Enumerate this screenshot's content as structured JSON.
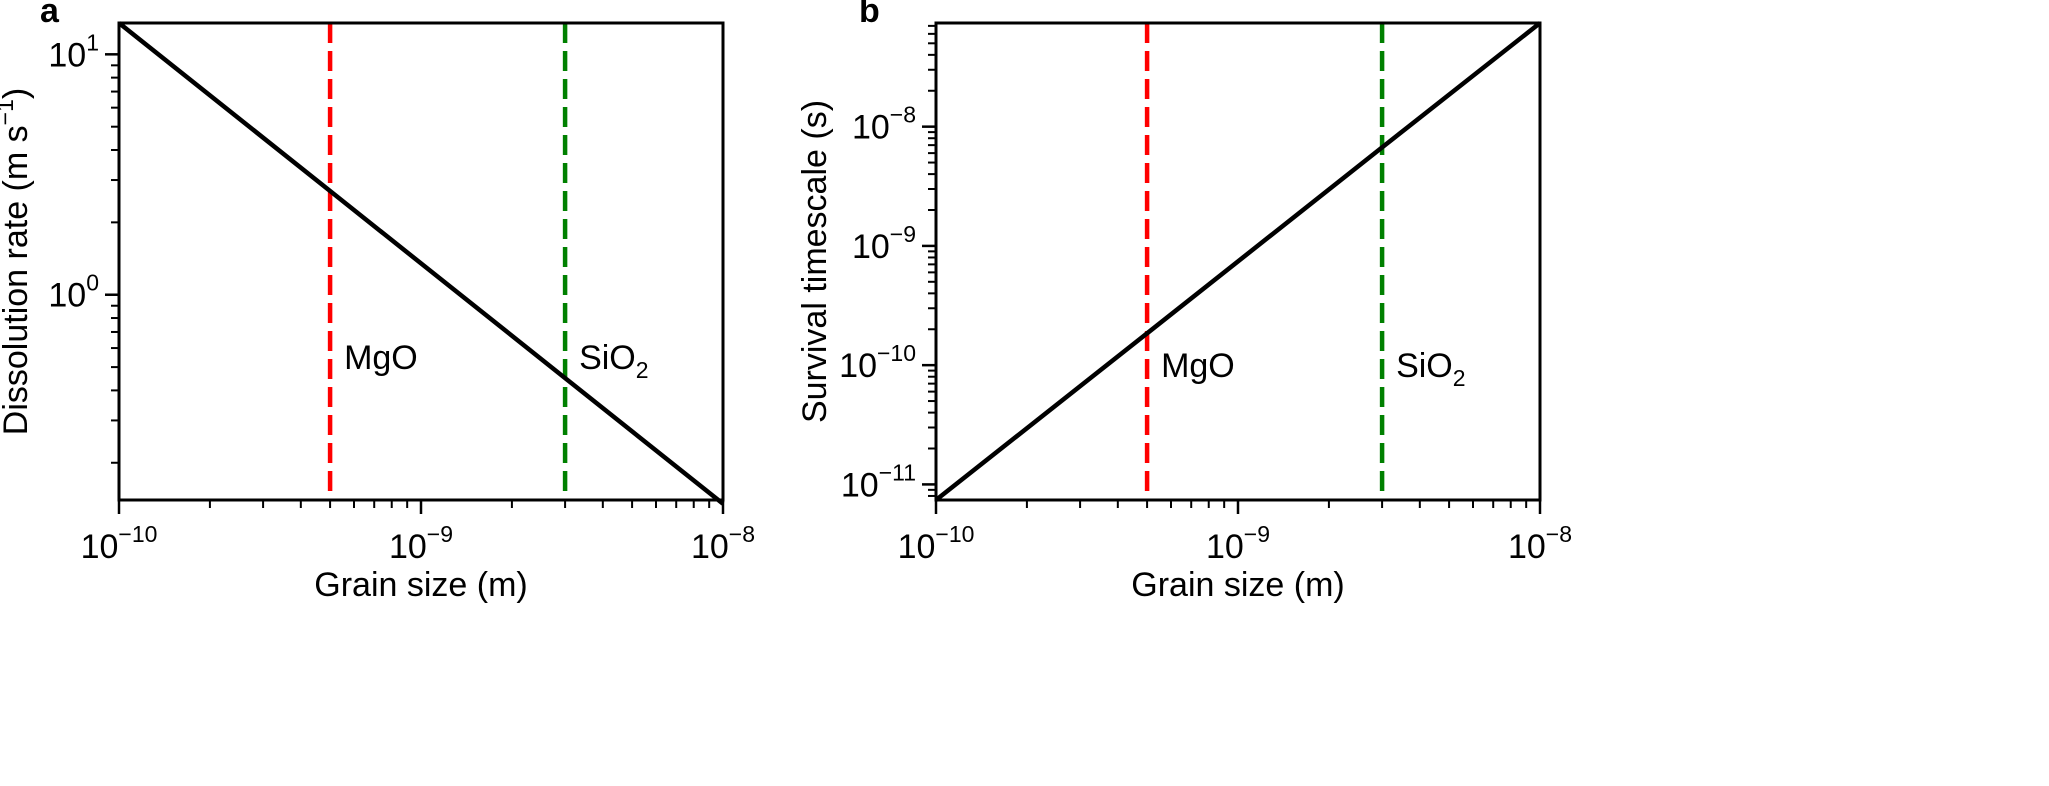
{
  "chart_data": [
    {
      "panel": "a",
      "type": "line",
      "xlabel": "Grain size (m)",
      "ylabel": "Dissolution rate (m s⁻¹)",
      "ylabel_parts": {
        "pre": "Dissolution rate (m s",
        "sup": "−1",
        "post": ")"
      },
      "xscale": "log",
      "yscale": "log",
      "xlim": [
        1e-10,
        1e-08
      ],
      "ylim": [
        0.14,
        13.5
      ],
      "x_ticks": [
        {
          "value": 1e-10,
          "base": "10",
          "exp": "−10"
        },
        {
          "value": 1e-09,
          "base": "10",
          "exp": "−9"
        },
        {
          "value": 1e-08,
          "base": "10",
          "exp": "−8"
        }
      ],
      "y_ticks": [
        {
          "value": 1,
          "base": "10",
          "exp": "0"
        },
        {
          "value": 10,
          "base": "10",
          "exp": "1"
        }
      ],
      "series": [
        {
          "x": [
            1e-10,
            5e-10,
            3e-09,
            1e-08
          ],
          "y": [
            13.5,
            2.7,
            0.45,
            0.135
          ],
          "color": "#000000"
        }
      ],
      "vlines": [
        {
          "x": 5e-10,
          "label": "MgO",
          "label_y": 0.55,
          "color": "#ff0000"
        },
        {
          "x": 3e-09,
          "label_base": "SiO",
          "label_sub": "2",
          "label_y": 0.55,
          "color": "#008000"
        }
      ]
    },
    {
      "panel": "b",
      "type": "line",
      "xlabel": "Grain size (m)",
      "ylabel": "Survival timescale (s)",
      "xscale": "log",
      "yscale": "log",
      "xlim": [
        1e-10,
        1e-08
      ],
      "ylim": [
        7.4e-12,
        7.4e-08
      ],
      "x_ticks": [
        {
          "value": 1e-10,
          "base": "10",
          "exp": "−10"
        },
        {
          "value": 1e-09,
          "base": "10",
          "exp": "−9"
        },
        {
          "value": 1e-08,
          "base": "10",
          "exp": "−8"
        }
      ],
      "y_ticks": [
        {
          "value": 1e-11,
          "base": "10",
          "exp": "−11"
        },
        {
          "value": 1e-10,
          "base": "10",
          "exp": "−10"
        },
        {
          "value": 1e-09,
          "base": "10",
          "exp": "−9"
        },
        {
          "value": 1e-08,
          "base": "10",
          "exp": "−8"
        }
      ],
      "series": [
        {
          "x": [
            1e-10,
            5e-10,
            3e-09,
            1e-08
          ],
          "y": [
            7.4e-12,
            1.85e-10,
            6.7e-09,
            7.4e-08
          ],
          "color": "#000000"
        }
      ],
      "vlines": [
        {
          "x": 5e-10,
          "label": "MgO",
          "label_y": 1e-10,
          "color": "#ff0000"
        },
        {
          "x": 3e-09,
          "label_base": "SiO",
          "label_sub": "2",
          "label_y": 1e-10,
          "color": "#008000"
        }
      ]
    }
  ]
}
